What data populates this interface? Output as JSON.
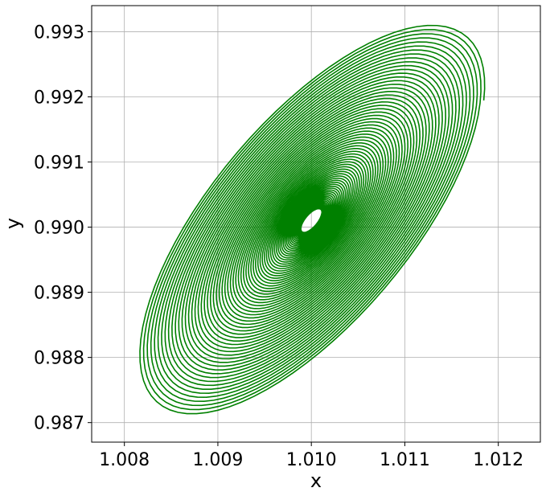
{
  "chart_data": {
    "type": "line",
    "title": "",
    "xlabel": "x",
    "ylabel": "y",
    "xlim": [
      1.00765,
      1.01245
    ],
    "ylim": [
      0.9867,
      0.9934
    ],
    "xticks": [
      1.008,
      1.009,
      1.01,
      1.011,
      1.012
    ],
    "xtick_labels": [
      "1.008",
      "1.009",
      "1.010",
      "1.011",
      "1.012"
    ],
    "yticks": [
      0.987,
      0.988,
      0.989,
      0.99,
      0.991,
      0.992,
      0.993
    ],
    "ytick_labels": [
      "0.987",
      "0.988",
      "0.989",
      "0.990",
      "0.991",
      "0.992",
      "0.993"
    ],
    "grid": true,
    "legend": "none",
    "series": [
      {
        "color": "#008000",
        "description_of_curve": "",
        "center": [
          1.01,
          0.9901
        ],
        "start_point": [
          1.011,
          0.9911
        ],
        "outer_extent_x": [
          1.0085,
          1.0122
        ],
        "outer_extent_y": [
          0.987,
          0.9931
        ],
        "turns": 70,
        "inner_radius_fraction": 0.06,
        "orientation_deg": -50,
        "axis_ratio": 0.42
      }
    ]
  }
}
